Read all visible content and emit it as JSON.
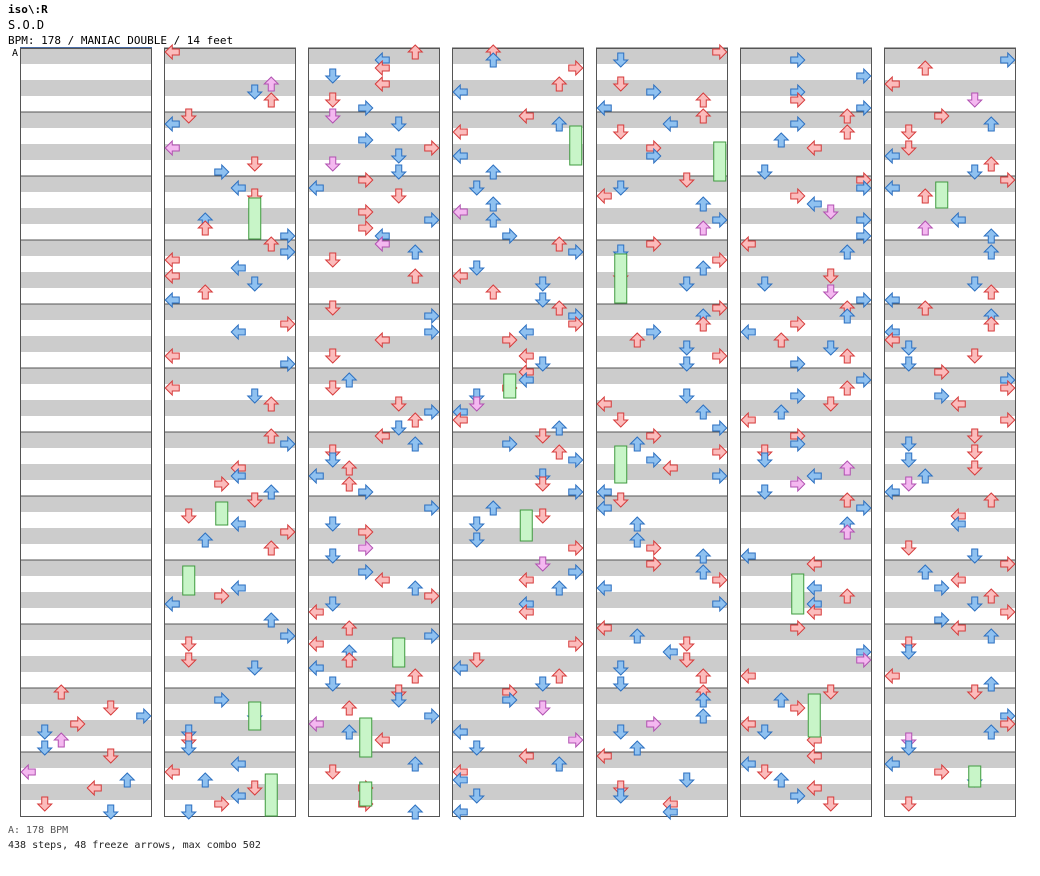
{
  "header": {
    "artist": "iso\\:R",
    "title": "S.O.D",
    "info": "BPM: 178 / MANIAC DOUBLE / 14 feet",
    "tempo_marker": "A"
  },
  "footer": {
    "bpm_note": "A: 178 BPM",
    "stats": "438 steps, 48 freeze arrows, max combo 502"
  },
  "colors": {
    "stripe": "#cccccc",
    "lane_bg": "#ffffff",
    "border": "#555555",
    "quarter_fill": "#fbbcbc",
    "quarter_stroke": "#d63a3a",
    "eighth_fill": "#8fc1f0",
    "eighth_stroke": "#2b6fc0",
    "sixteenth_fill": "#f4b8f0",
    "sixteenth_stroke": "#b050b0",
    "freeze_fill": "#c8f5c8",
    "freeze_stroke": "#3f9a3f"
  },
  "chart_data": {
    "type": "step-chart",
    "mode": "MANIAC DOUBLE",
    "lanes": [
      "left",
      "down",
      "up",
      "right",
      "left",
      "down",
      "up",
      "right"
    ],
    "measures_per_column": 12,
    "total_measures": 84,
    "steps": 438,
    "freeze_arrows": 48,
    "max_combo": 502,
    "bpm": 178
  }
}
